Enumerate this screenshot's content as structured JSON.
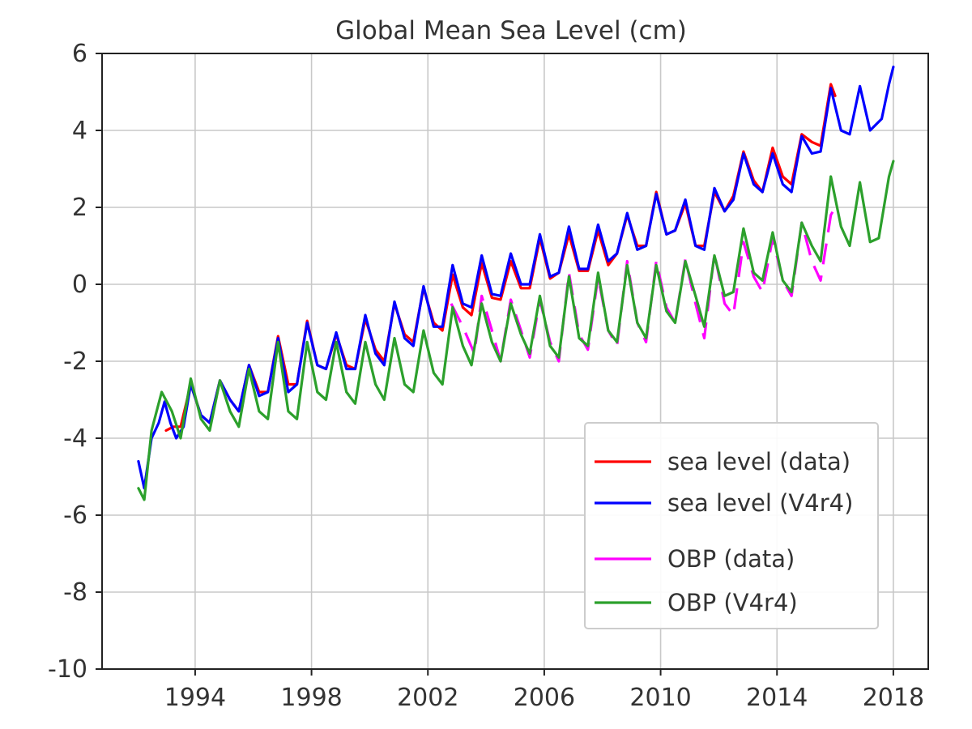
{
  "chart_data": {
    "type": "line",
    "title": "Global Mean Sea Level (cm)",
    "xlabel": "",
    "ylabel": "",
    "xlim": [
      1990.8,
      2019.2
    ],
    "ylim": [
      -10,
      6
    ],
    "xticks": [
      1994,
      1998,
      2002,
      2006,
      2010,
      2014,
      2018
    ],
    "xtick_labels": [
      "1994",
      "1998",
      "2002",
      "2006",
      "2010",
      "2014",
      "2018"
    ],
    "yticks": [
      -10,
      -8,
      -6,
      -4,
      -2,
      0,
      2,
      4,
      6
    ],
    "ytick_labels": [
      "-10",
      "-8",
      "-6",
      "-4",
      "-2",
      "0",
      "2",
      "4",
      "6"
    ],
    "grid": true,
    "legend_position": "bottom-right",
    "series": [
      {
        "name": "sea level (data)",
        "color": "#ff0000",
        "dashed": false,
        "points": [
          [
            1993.0,
            -3.8
          ],
          [
            1993.25,
            -3.7
          ],
          [
            1993.5,
            -3.7
          ],
          [
            1993.85,
            -2.6
          ],
          [
            1994.2,
            -3.4
          ],
          [
            1994.5,
            -3.6
          ],
          [
            1994.85,
            -2.5
          ],
          [
            1995.2,
            -3.0
          ],
          [
            1995.5,
            -3.3
          ],
          [
            1995.85,
            -2.1
          ],
          [
            1996.2,
            -2.8
          ],
          [
            1996.5,
            -2.8
          ],
          [
            1996.85,
            -1.35
          ],
          [
            1997.2,
            -2.6
          ],
          [
            1997.5,
            -2.6
          ],
          [
            1997.85,
            -0.95
          ],
          [
            1998.2,
            -2.1
          ],
          [
            1998.5,
            -2.2
          ],
          [
            1998.85,
            -1.3
          ],
          [
            1999.2,
            -2.1
          ],
          [
            1999.5,
            -2.2
          ],
          [
            1999.85,
            -0.9
          ],
          [
            2000.2,
            -1.7
          ],
          [
            2000.5,
            -2.0
          ],
          [
            2000.85,
            -0.5
          ],
          [
            2001.2,
            -1.3
          ],
          [
            2001.5,
            -1.5
          ],
          [
            2001.85,
            -0.1
          ],
          [
            2002.2,
            -1.0
          ],
          [
            2002.5,
            -1.2
          ],
          [
            2002.85,
            0.25
          ],
          [
            2003.2,
            -0.6
          ],
          [
            2003.5,
            -0.8
          ],
          [
            2003.85,
            0.55
          ],
          [
            2004.2,
            -0.35
          ],
          [
            2004.5,
            -0.4
          ],
          [
            2004.85,
            0.6
          ],
          [
            2005.2,
            -0.1
          ],
          [
            2005.5,
            -0.1
          ],
          [
            2005.85,
            1.2
          ],
          [
            2006.2,
            0.15
          ],
          [
            2006.5,
            0.3
          ],
          [
            2006.85,
            1.3
          ],
          [
            2007.2,
            0.35
          ],
          [
            2007.5,
            0.35
          ],
          [
            2007.85,
            1.4
          ],
          [
            2008.2,
            0.5
          ],
          [
            2008.5,
            0.8
          ],
          [
            2008.85,
            1.8
          ],
          [
            2009.2,
            1.0
          ],
          [
            2009.5,
            1.0
          ],
          [
            2009.85,
            2.4
          ],
          [
            2010.2,
            1.3
          ],
          [
            2010.5,
            1.4
          ],
          [
            2010.85,
            2.1
          ],
          [
            2011.2,
            1.0
          ],
          [
            2011.5,
            1.0
          ],
          [
            2011.85,
            2.4
          ],
          [
            2012.2,
            1.9
          ],
          [
            2012.5,
            2.3
          ],
          [
            2012.85,
            3.45
          ],
          [
            2013.2,
            2.7
          ],
          [
            2013.5,
            2.4
          ],
          [
            2013.85,
            3.55
          ],
          [
            2014.2,
            2.8
          ],
          [
            2014.5,
            2.6
          ],
          [
            2014.85,
            3.9
          ],
          [
            2015.2,
            3.7
          ],
          [
            2015.5,
            3.6
          ],
          [
            2015.85,
            5.2
          ],
          [
            2016.0,
            4.9
          ]
        ]
      },
      {
        "name": "sea level (V4r4)",
        "color": "#0000ff",
        "dashed": false,
        "points": [
          [
            1992.05,
            -4.6
          ],
          [
            1992.25,
            -5.3
          ],
          [
            1992.5,
            -4.0
          ],
          [
            1992.75,
            -3.6
          ],
          [
            1992.95,
            -3.05
          ],
          [
            1993.15,
            -3.6
          ],
          [
            1993.35,
            -4.0
          ],
          [
            1993.6,
            -3.7
          ],
          [
            1993.85,
            -2.6
          ],
          [
            1994.2,
            -3.4
          ],
          [
            1994.5,
            -3.6
          ],
          [
            1994.85,
            -2.5
          ],
          [
            1995.2,
            -3.0
          ],
          [
            1995.5,
            -3.3
          ],
          [
            1995.85,
            -2.1
          ],
          [
            1996.2,
            -2.9
          ],
          [
            1996.5,
            -2.8
          ],
          [
            1996.85,
            -1.4
          ],
          [
            1997.2,
            -2.8
          ],
          [
            1997.5,
            -2.6
          ],
          [
            1997.85,
            -1.0
          ],
          [
            1998.2,
            -2.1
          ],
          [
            1998.5,
            -2.2
          ],
          [
            1998.85,
            -1.25
          ],
          [
            1999.2,
            -2.2
          ],
          [
            1999.5,
            -2.2
          ],
          [
            1999.85,
            -0.8
          ],
          [
            2000.2,
            -1.8
          ],
          [
            2000.5,
            -2.1
          ],
          [
            2000.85,
            -0.45
          ],
          [
            2001.2,
            -1.4
          ],
          [
            2001.5,
            -1.6
          ],
          [
            2001.85,
            -0.05
          ],
          [
            2002.2,
            -1.1
          ],
          [
            2002.5,
            -1.1
          ],
          [
            2002.85,
            0.5
          ],
          [
            2003.2,
            -0.5
          ],
          [
            2003.5,
            -0.6
          ],
          [
            2003.85,
            0.75
          ],
          [
            2004.2,
            -0.25
          ],
          [
            2004.5,
            -0.3
          ],
          [
            2004.85,
            0.8
          ],
          [
            2005.2,
            0.0
          ],
          [
            2005.5,
            0.0
          ],
          [
            2005.85,
            1.3
          ],
          [
            2006.2,
            0.2
          ],
          [
            2006.5,
            0.3
          ],
          [
            2006.85,
            1.5
          ],
          [
            2007.2,
            0.4
          ],
          [
            2007.5,
            0.4
          ],
          [
            2007.85,
            1.55
          ],
          [
            2008.2,
            0.6
          ],
          [
            2008.5,
            0.8
          ],
          [
            2008.85,
            1.85
          ],
          [
            2009.2,
            0.9
          ],
          [
            2009.5,
            1.0
          ],
          [
            2009.85,
            2.35
          ],
          [
            2010.2,
            1.3
          ],
          [
            2010.5,
            1.4
          ],
          [
            2010.85,
            2.2
          ],
          [
            2011.2,
            1.0
          ],
          [
            2011.5,
            0.9
          ],
          [
            2011.85,
            2.5
          ],
          [
            2012.2,
            1.9
          ],
          [
            2012.5,
            2.2
          ],
          [
            2012.85,
            3.4
          ],
          [
            2013.2,
            2.6
          ],
          [
            2013.5,
            2.4
          ],
          [
            2013.85,
            3.4
          ],
          [
            2014.2,
            2.6
          ],
          [
            2014.5,
            2.4
          ],
          [
            2014.85,
            3.85
          ],
          [
            2015.2,
            3.4
          ],
          [
            2015.5,
            3.45
          ],
          [
            2015.85,
            5.1
          ],
          [
            2016.2,
            4.0
          ],
          [
            2016.5,
            3.9
          ],
          [
            2016.85,
            5.15
          ],
          [
            2017.2,
            4.0
          ],
          [
            2017.6,
            4.3
          ],
          [
            2017.85,
            5.2
          ],
          [
            2018.0,
            5.65
          ]
        ]
      },
      {
        "name": "OBP (data)",
        "color": "#ff00ff",
        "dashed": true,
        "points": [
          [
            2002.8,
            -0.5
          ],
          [
            2003.2,
            -1.1
          ],
          [
            2003.6,
            -1.8
          ],
          [
            2003.85,
            -0.3
          ],
          [
            2004.2,
            -1.2
          ],
          [
            2004.5,
            -2.0
          ],
          [
            2004.85,
            -0.4
          ],
          [
            2005.2,
            -1.2
          ],
          [
            2005.5,
            -1.9
          ],
          [
            2005.85,
            -0.4
          ],
          [
            2006.2,
            -1.5
          ],
          [
            2006.5,
            -2.0
          ],
          [
            2006.85,
            0.3
          ],
          [
            2007.2,
            -1.3
          ],
          [
            2007.5,
            -1.7
          ],
          [
            2007.85,
            0.2
          ],
          [
            2008.2,
            -1.2
          ],
          [
            2008.5,
            -1.6
          ],
          [
            2008.85,
            0.6
          ],
          [
            2009.2,
            -1.0
          ],
          [
            2009.5,
            -1.5
          ],
          [
            2009.85,
            0.6
          ],
          [
            2010.2,
            -0.6
          ],
          [
            2010.5,
            -1.0
          ],
          [
            2010.85,
            0.65
          ],
          [
            2011.2,
            -0.5
          ],
          [
            2011.5,
            -1.4
          ],
          [
            2011.85,
            0.8
          ],
          [
            2012.2,
            -0.5
          ],
          [
            2012.5,
            -0.8
          ],
          [
            2012.85,
            1.1
          ],
          [
            2013.2,
            0.2
          ],
          [
            2013.5,
            -0.2
          ],
          [
            2013.85,
            1.2
          ],
          [
            2014.2,
            0.1
          ],
          [
            2014.5,
            -0.3
          ],
          [
            2014.85,
            1.6
          ],
          [
            2015.2,
            0.6
          ],
          [
            2015.5,
            0.1
          ],
          [
            2015.85,
            1.8
          ],
          [
            2016.0,
            2.0
          ]
        ]
      },
      {
        "name": "OBP (V4r4)",
        "color": "#2ca02c",
        "dashed": false,
        "points": [
          [
            1992.05,
            -5.3
          ],
          [
            1992.25,
            -5.6
          ],
          [
            1992.5,
            -3.8
          ],
          [
            1992.85,
            -2.8
          ],
          [
            1993.2,
            -3.3
          ],
          [
            1993.5,
            -4.0
          ],
          [
            1993.85,
            -2.45
          ],
          [
            1994.2,
            -3.5
          ],
          [
            1994.5,
            -3.8
          ],
          [
            1994.85,
            -2.5
          ],
          [
            1995.2,
            -3.3
          ],
          [
            1995.5,
            -3.7
          ],
          [
            1995.85,
            -2.2
          ],
          [
            1996.2,
            -3.3
          ],
          [
            1996.5,
            -3.5
          ],
          [
            1996.85,
            -1.5
          ],
          [
            1997.2,
            -3.3
          ],
          [
            1997.5,
            -3.5
          ],
          [
            1997.85,
            -1.5
          ],
          [
            1998.2,
            -2.8
          ],
          [
            1998.5,
            -3.0
          ],
          [
            1998.85,
            -1.5
          ],
          [
            1999.2,
            -2.8
          ],
          [
            1999.5,
            -3.1
          ],
          [
            1999.85,
            -1.5
          ],
          [
            2000.2,
            -2.6
          ],
          [
            2000.5,
            -3.0
          ],
          [
            2000.85,
            -1.4
          ],
          [
            2001.2,
            -2.6
          ],
          [
            2001.5,
            -2.8
          ],
          [
            2001.85,
            -1.2
          ],
          [
            2002.2,
            -2.3
          ],
          [
            2002.5,
            -2.6
          ],
          [
            2002.85,
            -0.6
          ],
          [
            2003.2,
            -1.6
          ],
          [
            2003.5,
            -2.1
          ],
          [
            2003.85,
            -0.5
          ],
          [
            2004.2,
            -1.5
          ],
          [
            2004.5,
            -2.0
          ],
          [
            2004.85,
            -0.5
          ],
          [
            2005.2,
            -1.3
          ],
          [
            2005.5,
            -1.8
          ],
          [
            2005.85,
            -0.3
          ],
          [
            2006.2,
            -1.6
          ],
          [
            2006.5,
            -1.9
          ],
          [
            2006.85,
            0.2
          ],
          [
            2007.2,
            -1.4
          ],
          [
            2007.5,
            -1.6
          ],
          [
            2007.85,
            0.3
          ],
          [
            2008.2,
            -1.2
          ],
          [
            2008.5,
            -1.5
          ],
          [
            2008.85,
            0.5
          ],
          [
            2009.2,
            -1.0
          ],
          [
            2009.5,
            -1.4
          ],
          [
            2009.85,
            0.5
          ],
          [
            2010.2,
            -0.7
          ],
          [
            2010.5,
            -1.0
          ],
          [
            2010.85,
            0.6
          ],
          [
            2011.2,
            -0.3
          ],
          [
            2011.5,
            -1.1
          ],
          [
            2011.85,
            0.75
          ],
          [
            2012.2,
            -0.3
          ],
          [
            2012.5,
            -0.2
          ],
          [
            2012.85,
            1.45
          ],
          [
            2013.2,
            0.3
          ],
          [
            2013.5,
            0.1
          ],
          [
            2013.85,
            1.35
          ],
          [
            2014.2,
            0.1
          ],
          [
            2014.5,
            -0.2
          ],
          [
            2014.85,
            1.6
          ],
          [
            2015.2,
            1.0
          ],
          [
            2015.5,
            0.6
          ],
          [
            2015.85,
            2.8
          ],
          [
            2016.2,
            1.5
          ],
          [
            2016.5,
            1.0
          ],
          [
            2016.85,
            2.65
          ],
          [
            2017.2,
            1.1
          ],
          [
            2017.5,
            1.2
          ],
          [
            2017.85,
            2.8
          ],
          [
            2018.0,
            3.2
          ]
        ]
      }
    ]
  }
}
